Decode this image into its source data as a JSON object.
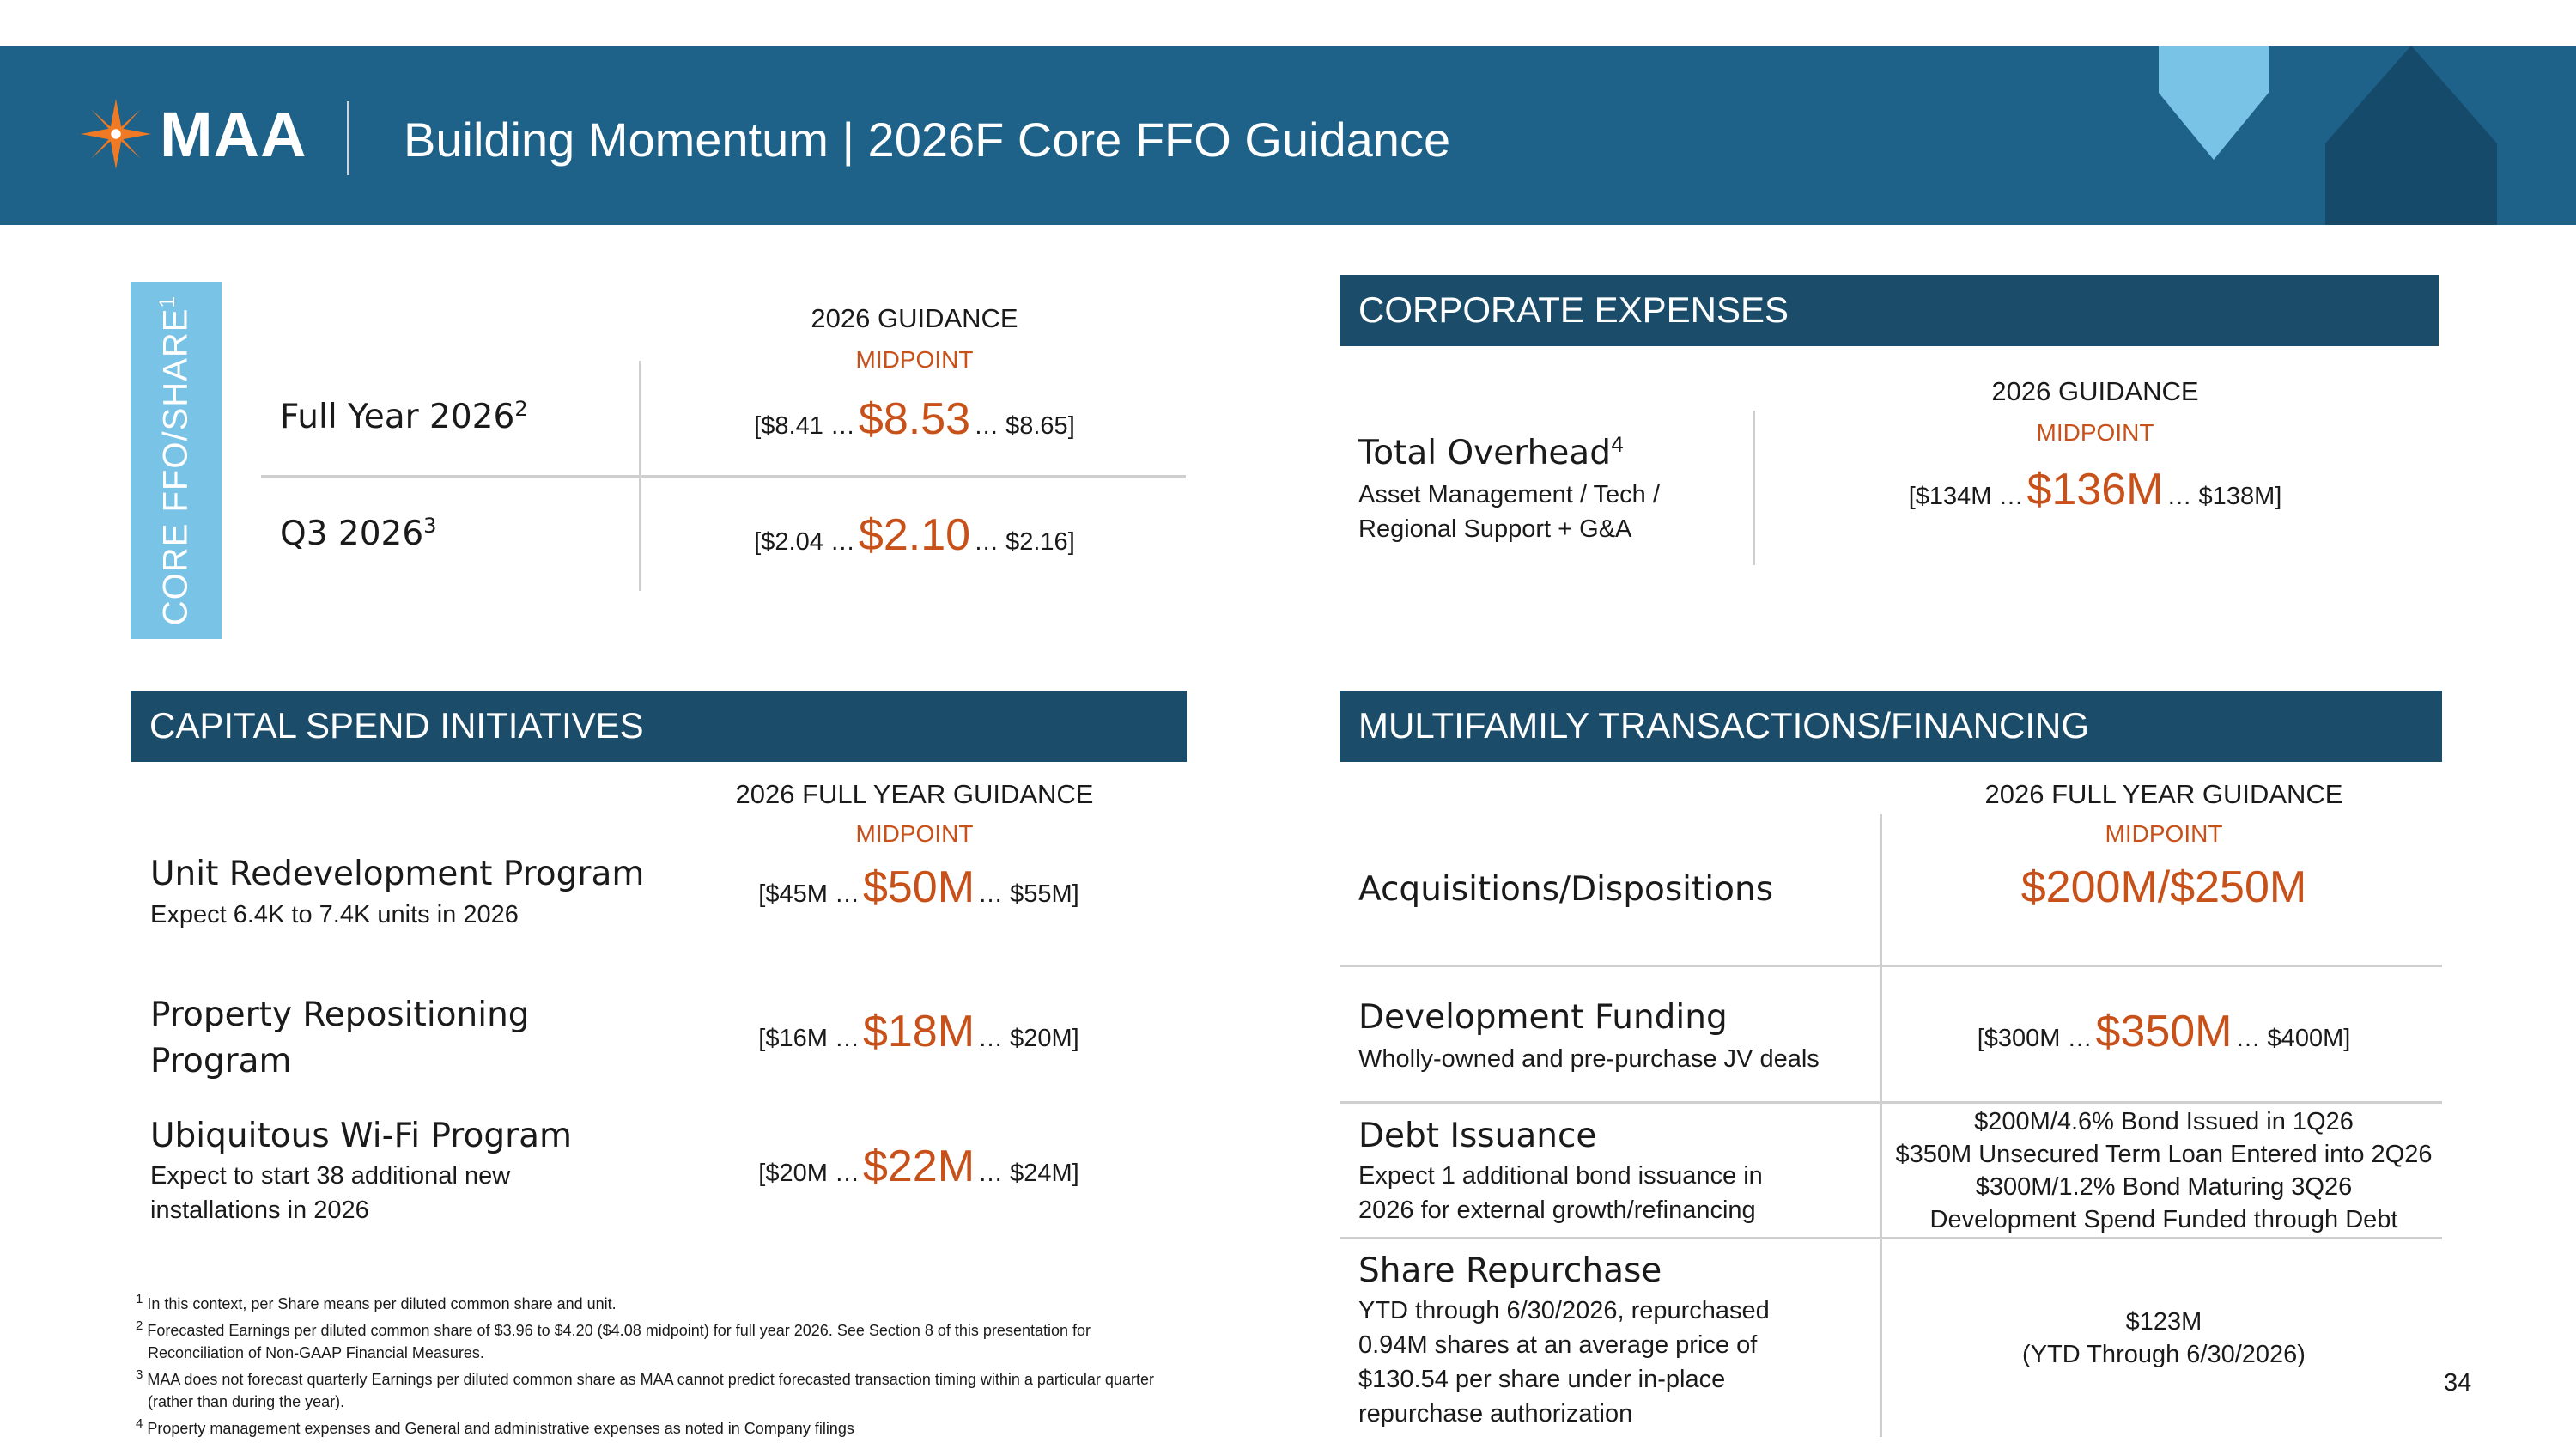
{
  "header": {
    "logo_text": "MAA",
    "title": "Building Momentum | 2026F Core FFO Guidance",
    "colors": {
      "bar": "#1e6189",
      "logo_orange": "#f07a24",
      "accent_light_blue": "#79c3e7",
      "house_dark": "#154a6a"
    }
  },
  "ffo": {
    "band_label": "CORE FFO/SHARE",
    "band_sup": "1",
    "guidance_header": "2026 GUIDANCE",
    "midpoint_label": "MIDPOINT",
    "rows": [
      {
        "label": "Full Year 2026",
        "sup": "2",
        "low": "[$8.41 …",
        "mid": "$8.53",
        "high": "… $8.65]"
      },
      {
        "label": "Q3  2026",
        "sup": "3",
        "low": "[$2.04 …",
        "mid": "$2.10",
        "high": "… $2.16]"
      }
    ]
  },
  "corporate": {
    "title": "CORPORATE EXPENSES",
    "guidance_header": "2026 GUIDANCE",
    "midpoint_label": "MIDPOINT",
    "row": {
      "label": "Total Overhead",
      "sup": "4",
      "sub1": "Asset Management / Tech /",
      "sub2": "Regional Support + G&A",
      "low": "[$134M …",
      "mid": "$136M",
      "high": "… $138M]"
    }
  },
  "capital": {
    "title": "CAPITAL SPEND INITIATIVES",
    "guidance_header": "2026 FULL YEAR GUIDANCE",
    "midpoint_label": "MIDPOINT",
    "rows": [
      {
        "label": "Unit Redevelopment Program",
        "sub": "Expect 6.4K to 7.4K units in 2026",
        "low": "[$45M …",
        "mid": "$50M",
        "high": "… $55M]"
      },
      {
        "label1": "Property Repositioning",
        "label2": "Program",
        "low": "[$16M …",
        "mid": "$18M",
        "high": "… $20M]"
      },
      {
        "label": "Ubiquitous Wi-Fi Program",
        "sub1": "Expect to start 38 additional new",
        "sub2": "installations in 2026",
        "low": "[$20M …",
        "mid": "$22M",
        "high": "… $24M]"
      }
    ]
  },
  "multifamily": {
    "title": "MULTIFAMILY TRANSACTIONS/FINANCING",
    "guidance_header": "2026 FULL YEAR GUIDANCE",
    "midpoint_label": "MIDPOINT",
    "acq": {
      "label": "Acquisitions/Dispositions",
      "value": "$200M/$250M"
    },
    "dev": {
      "label": "Development Funding",
      "sub": "Wholly-owned and pre-purchase JV deals",
      "low": "[$300M …",
      "mid": "$350M",
      "high": "… $400M]"
    },
    "debt": {
      "label": "Debt Issuance",
      "sub1": "Expect 1 additional bond issuance in",
      "sub2": "2026 for external growth/refinancing",
      "lines": [
        "$200M/4.6% Bond Issued in 1Q26",
        "$350M Unsecured Term Loan Entered into 2Q26",
        "$300M/1.2% Bond Maturing 3Q26",
        "Development Spend Funded through Debt"
      ]
    },
    "repurchase": {
      "label": "Share Repurchase",
      "sub": [
        "YTD through 6/30/2026, repurchased",
        "0.94M shares at an average price of",
        "$130.54 per share under in-place",
        "repurchase authorization"
      ],
      "value1": "$123M",
      "value2": "(YTD Through 6/30/2026)"
    }
  },
  "footnotes": [
    {
      "num": "1",
      "text": "In this context, per Share means per diluted common share and unit."
    },
    {
      "num": "2",
      "text": "Forecasted Earnings per diluted common share of $3.96 to $4.20 ($4.08 midpoint) for full year 2026. See Section 8 of this presentation for Reconciliation of Non-GAAP Financial Measures."
    },
    {
      "num": "3",
      "text": "MAA does not forecast quarterly Earnings per diluted common share as MAA cannot predict forecasted transaction timing within a particular quarter (rather than during the year)."
    },
    {
      "num": "4",
      "text": "Property management expenses and General and administrative expenses as noted in Company filings"
    }
  ],
  "page_number": "34"
}
